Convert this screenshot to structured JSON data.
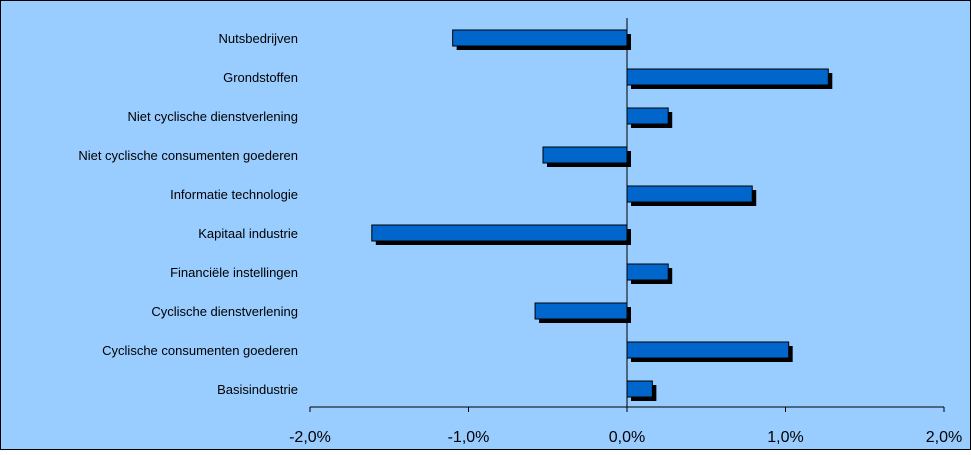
{
  "chart_data": {
    "type": "bar",
    "orientation": "horizontal",
    "categories": [
      "Nutsbedrijven",
      "Grondstoffen",
      "Niet cyclische dienstverlening",
      "Niet cyclische consumenten goederen",
      "Informatie technologie",
      "Kapitaal industrie",
      "Financiële instellingen",
      "Cyclische dienstverlening",
      "Cyclische consumenten goederen",
      "Basisindustrie"
    ],
    "values": [
      -1.1,
      1.27,
      0.26,
      -0.53,
      0.79,
      -1.61,
      0.26,
      -0.58,
      1.02,
      0.16
    ],
    "xlim": [
      -2.0,
      2.0
    ],
    "xticks": [
      -2.0,
      -1.0,
      0.0,
      1.0,
      2.0
    ],
    "xtick_labels": [
      "-2,0%",
      "-1,0%",
      "0,0%",
      "1,0%",
      "2,0%"
    ],
    "grid": false,
    "title": "",
    "xlabel": "",
    "ylabel": ""
  },
  "colors": {
    "plot_background": "#99ccff",
    "bar_fill": "#0066cc",
    "bar_shadow": "#000000",
    "axis": "#000000"
  }
}
